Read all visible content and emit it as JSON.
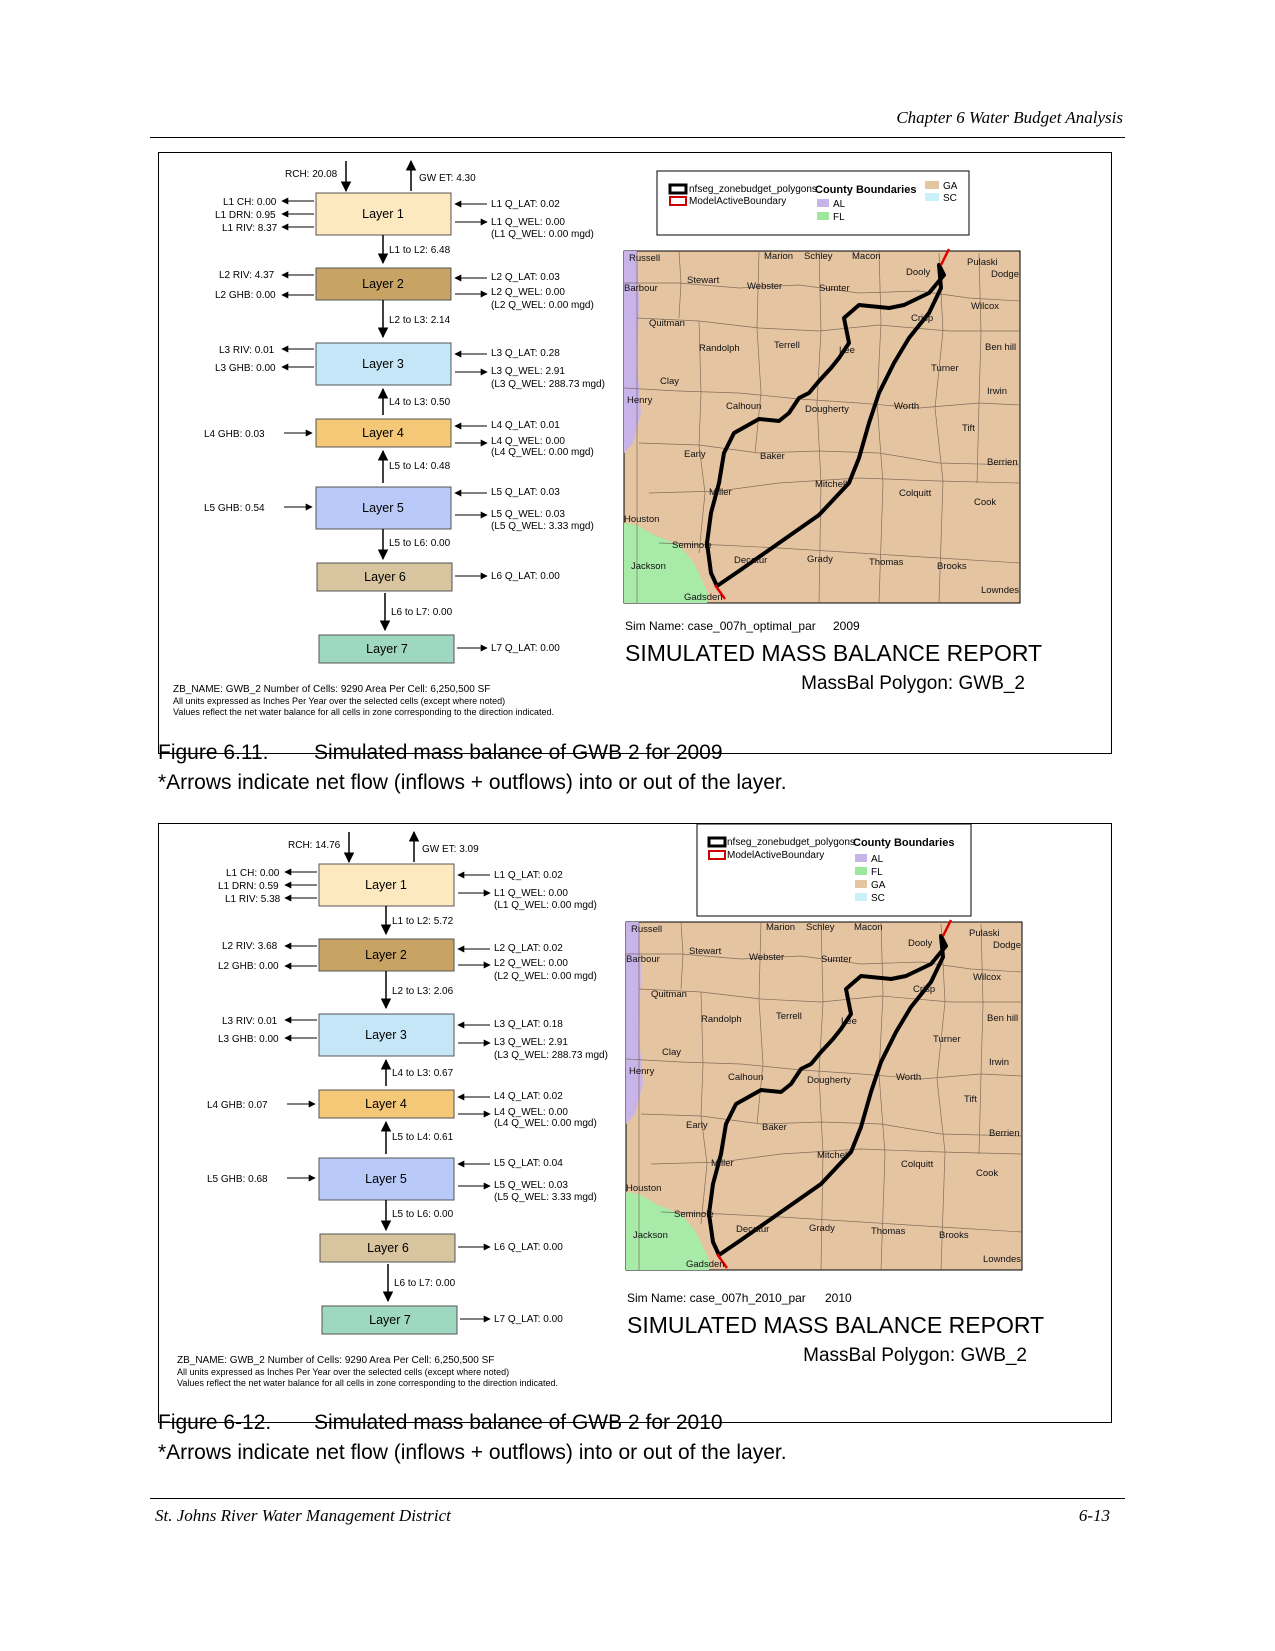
{
  "header": {
    "chapter": "Chapter 6 Water Budget Analysis"
  },
  "footer": {
    "left": "St. Johns River Water Management District",
    "right": "6-13"
  },
  "common": {
    "layers": [
      "Layer 1",
      "Layer 2",
      "Layer 3",
      "Layer 4",
      "Layer 5",
      "Layer 6",
      "Layer 7"
    ],
    "legend": {
      "polygons": "nfseg_zonebudget_polygons",
      "active": "ModelActiveBoundary",
      "county_title": "County Boundaries",
      "states": [
        "AL",
        "FL",
        "GA",
        "SC"
      ]
    },
    "report_title": "SIMULATED MASS BALANCE REPORT",
    "polygon": "MassBal Polygon: GWB_2",
    "zb_line": "ZB_NAME: GWB_2  Number of Cells: 9290  Area Per Cell: 6,250,500 SF",
    "units_line": "All units expressed as Inches Per Year over the selected cells (except where noted)",
    "values_line": "Values reflect the net water balance for all cells in zone corresponding to the direction indicated.",
    "counties": [
      "Russell",
      "Marion",
      "Schley",
      "Macon",
      "Pulaski",
      "Dooly",
      "Dodge",
      "Barbour",
      "Stewart",
      "Webster",
      "Sumter",
      "Wilcox",
      "Crisp",
      "Quitman",
      "Randolph",
      "Terrell",
      "Lee",
      "Ben hill",
      "Turner",
      "Clay",
      "Irwin",
      "Henry",
      "Calhoun",
      "Dougherty",
      "Worth",
      "Tift",
      "Early",
      "Baker",
      "Berrien",
      "Mitchell",
      "Colquitt",
      "Miller",
      "Cook",
      "Houston",
      "Seminole",
      "Jackson",
      "Decatur",
      "Grady",
      "Thomas",
      "Brooks",
      "Lowndes",
      "Gadsden"
    ]
  },
  "figures": [
    {
      "caption_num": "Figure 6.11.",
      "caption_text": "Simulated mass balance of GWB 2 for 2009",
      "caption_note": "*Arrows indicate net flow (inflows + outflows) into or out of the layer.",
      "sim_name": "Sim Name: case_007h_optimal_par",
      "year": "2009",
      "labels": {
        "rch": "RCH: 20.08",
        "gwet": "GW ET:  4.30",
        "l1ch": "L1 CH:  0.00",
        "l1drn": "L1 DRN:  0.95",
        "l1riv": "L1 RIV:  8.37",
        "l1qlat": "L1 Q_LAT:  0.02",
        "l1qwel": "L1 Q_WEL:  0.00",
        "l1mgd": "(L1 Q_WEL:  0.00 mgd)",
        "l1l2": "L1 to L2:  6.48",
        "l2riv": "L2 RIV:  4.37",
        "l2ghb": "L2 GHB:  0.00",
        "l2qlat": "L2 Q_LAT:  0.03",
        "l2qwel": "L2 Q_WEL:  0.00",
        "l2mgd": "(L2 Q_WEL:  0.00 mgd)",
        "l2l3": "L2 to L3:  2.14",
        "l3riv": "L3 RIV:  0.01",
        "l3ghb": "L3 GHB:  0.00",
        "l3qlat": "L3 Q_LAT:  0.28",
        "l3qwel": "L3 Q_WEL:  2.91",
        "l3mgd": "(L3 Q_WEL: 288.73 mgd)",
        "l4l3": "L4 to L3:  0.50",
        "l4ghb": "L4 GHB:  0.03",
        "l4qlat": "L4 Q_LAT:  0.01",
        "l4qwel": "L4 Q_WEL:  0.00",
        "l4mgd": "(L4 Q_WEL:  0.00 mgd)",
        "l5l4": "L5 to L4:  0.48",
        "l5ghb": "L5 GHB:  0.54",
        "l5qlat": "L5 Q_LAT:  0.03",
        "l5qwel": "L5 Q_WEL:  0.03",
        "l5mgd": "(L5 Q_WEL:  3.33 mgd)",
        "l5l6": "L5 to L6:  0.00",
        "l6qlat": "L6 Q_LAT:  0.00",
        "l6l7": "L6 to L7:  0.00",
        "l7qlat": "L7 Q_LAT:  0.00"
      }
    },
    {
      "caption_num": "Figure 6-12.",
      "caption_text": "Simulated mass balance of GWB 2 for 2010",
      "caption_note": "*Arrows indicate net flow (inflows + outflows) into or out of the layer.",
      "sim_name": "Sim Name: case_007h_2010_par",
      "year": "2010",
      "labels": {
        "rch": "RCH: 14.76",
        "gwet": "GW ET:  3.09",
        "l1ch": "L1 CH:  0.00",
        "l1drn": "L1 DRN:  0.59",
        "l1riv": "L1 RIV:  5.38",
        "l1qlat": "L1 Q_LAT:  0.02",
        "l1qwel": "L1 Q_WEL:  0.00",
        "l1mgd": "(L1 Q_WEL:  0.00 mgd)",
        "l1l2": "L1 to L2:  5.72",
        "l2riv": "L2 RIV:  3.68",
        "l2ghb": "L2 GHB:  0.00",
        "l2qlat": "L2 Q_LAT:  0.02",
        "l2qwel": "L2 Q_WEL:  0.00",
        "l2mgd": "(L2 Q_WEL:  0.00 mgd)",
        "l2l3": "L2 to L3:  2.06",
        "l3riv": "L3 RIV:  0.01",
        "l3ghb": "L3 GHB:  0.00",
        "l3qlat": "L3 Q_LAT:  0.18",
        "l3qwel": "L3 Q_WEL:  2.91",
        "l3mgd": "(L3 Q_WEL: 288.73 mgd)",
        "l4l3": "L4 to L3:  0.67",
        "l4ghb": "L4 GHB:  0.07",
        "l4qlat": "L4 Q_LAT:  0.02",
        "l4qwel": "L4 Q_WEL:  0.00",
        "l4mgd": "(L4 Q_WEL:  0.00 mgd)",
        "l5l4": "L5 to L4:  0.61",
        "l5ghb": "L5 GHB:  0.68",
        "l5qlat": "L5 Q_LAT:  0.04",
        "l5qwel": "L5 Q_WEL:  0.03",
        "l5mgd": "(L5 Q_WEL:  3.33 mgd)",
        "l5l6": "L5 to L6:  0.00",
        "l6qlat": "L6 Q_LAT:  0.00",
        "l6l7": "L6 to L7:  0.00",
        "l7qlat": "L7 Q_LAT:  0.00"
      }
    }
  ]
}
